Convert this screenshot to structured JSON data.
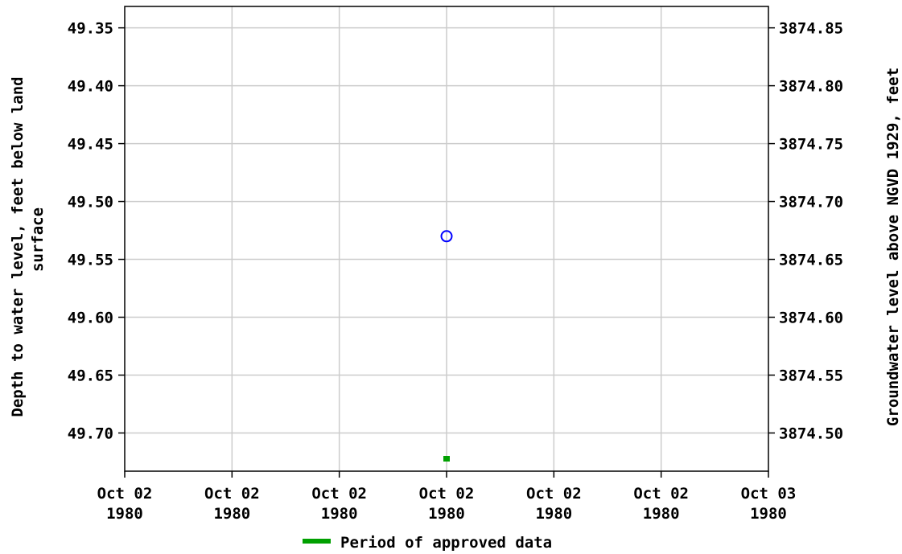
{
  "chart_data": {
    "type": "scatter",
    "left_axis": {
      "label_line1": "Depth to water level, feet below land",
      "label_line2": "surface",
      "ticks": [
        "49.35",
        "49.40",
        "49.45",
        "49.50",
        "49.55",
        "49.60",
        "49.65",
        "49.70"
      ],
      "tick_values": [
        49.35,
        49.4,
        49.45,
        49.5,
        49.55,
        49.6,
        49.65,
        49.7
      ],
      "range": [
        49.3315,
        49.733
      ],
      "inverted": true
    },
    "right_axis": {
      "label": "Groundwater level above NGVD 1929, feet",
      "ticks": [
        "3874.85",
        "3874.80",
        "3874.75",
        "3874.70",
        "3874.65",
        "3874.60",
        "3874.55",
        "3874.50"
      ],
      "tick_values": [
        3874.85,
        3874.8,
        3874.75,
        3874.7,
        3874.65,
        3874.6,
        3874.55,
        3874.5
      ]
    },
    "x_axis": {
      "ticks": [
        {
          "line1": "Oct 02",
          "line2": "1980"
        },
        {
          "line1": "Oct 02",
          "line2": "1980"
        },
        {
          "line1": "Oct 02",
          "line2": "1980"
        },
        {
          "line1": "Oct 02",
          "line2": "1980"
        },
        {
          "line1": "Oct 02",
          "line2": "1980"
        },
        {
          "line1": "Oct 02",
          "line2": "1980"
        },
        {
          "line1": "Oct 03",
          "line2": "1980"
        }
      ]
    },
    "series": [
      {
        "points": [
          {
            "x_tick": 3,
            "depth": 49.53
          }
        ],
        "color": "#0000ff",
        "marker": "open-circle"
      }
    ],
    "approved_marks": [
      {
        "x_tick": 3
      }
    ],
    "approved_color": "#00a000",
    "grid": true,
    "legend": {
      "position": "bottom-center",
      "entries": [
        {
          "label": "Period of approved data",
          "color": "#00a000"
        }
      ]
    }
  }
}
